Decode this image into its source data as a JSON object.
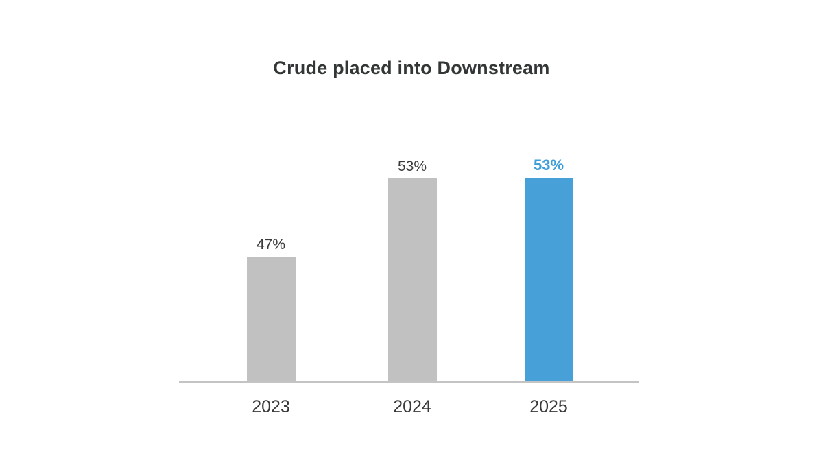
{
  "chart_data": {
    "type": "bar",
    "title": "Crude placed into Downstream",
    "categories": [
      "2023",
      "2024",
      "2025"
    ],
    "values": [
      47,
      53,
      53
    ],
    "value_labels": [
      "47%",
      "53%",
      "53%"
    ],
    "unit": "%",
    "xlabel": "",
    "ylabel": "",
    "ylim": [
      37.4,
      55
    ],
    "y_axis_visible": false,
    "y_axis_starts_at_zero": false,
    "grid": false,
    "legend": "none",
    "highlighted_index": 2,
    "bar_colors": [
      "#c1c1c1",
      "#c1c1c1",
      "#47a0d8"
    ],
    "value_label_colors": [
      "#3a3a3a",
      "#3a3a3a",
      "#3d9edb"
    ],
    "axis_line_color": "#c4c4c4",
    "title_color": "#333637",
    "tick_label_color": "#37393b",
    "background": "#ffffff"
  }
}
